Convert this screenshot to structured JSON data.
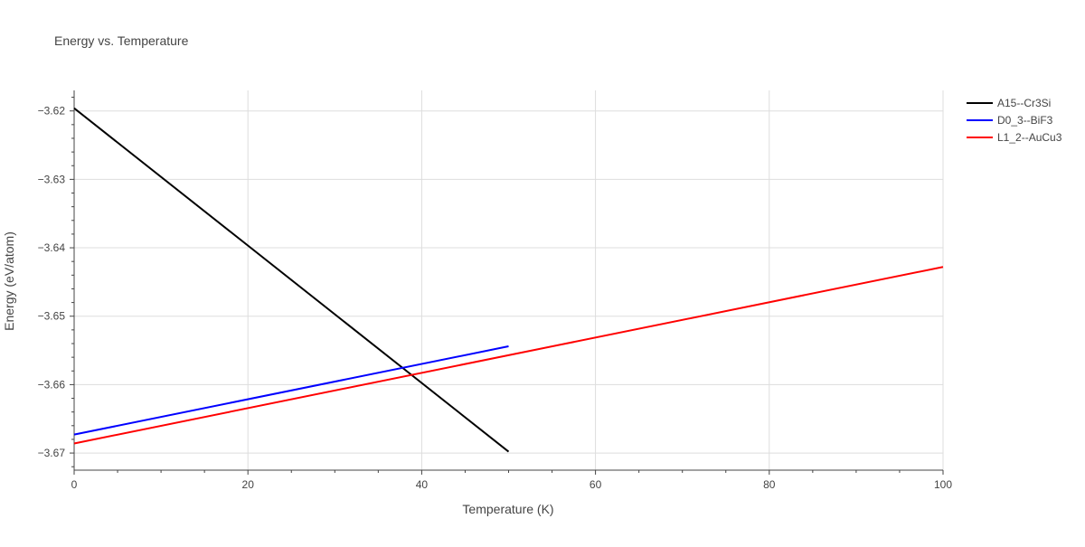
{
  "chart_data": {
    "type": "line",
    "title": "Energy vs. Temperature",
    "xlabel": "Temperature (K)",
    "ylabel": "Energy (eV/atom)",
    "xlim": [
      0,
      100
    ],
    "ylim": [
      -3.6725,
      -3.617
    ],
    "x_ticks": [
      0,
      20,
      40,
      60,
      80,
      100
    ],
    "x_tick_labels": [
      "0",
      "20",
      "40",
      "60",
      "80",
      "100"
    ],
    "y_ticks": [
      -3.62,
      -3.63,
      -3.64,
      -3.65,
      -3.66,
      -3.67
    ],
    "y_tick_labels": [
      "−3.62",
      "−3.63",
      "−3.64",
      "−3.65",
      "−3.66",
      "−3.67"
    ],
    "x_minor_step": 5,
    "y_minor_step": 0.002,
    "grid": true,
    "legend_position": "top-right",
    "series": [
      {
        "name": "A15--Cr3Si",
        "color": "#000000",
        "x": [
          0,
          50
        ],
        "y": [
          -3.6196,
          -3.6698
        ]
      },
      {
        "name": "D0_3--BiF3",
        "color": "#0000ff",
        "x": [
          0,
          50
        ],
        "y": [
          -3.6673,
          -3.6544
        ]
      },
      {
        "name": "L1_2--AuCu3",
        "color": "#ff0000",
        "x": [
          0,
          100
        ],
        "y": [
          -3.6686,
          -3.6428
        ]
      }
    ]
  }
}
